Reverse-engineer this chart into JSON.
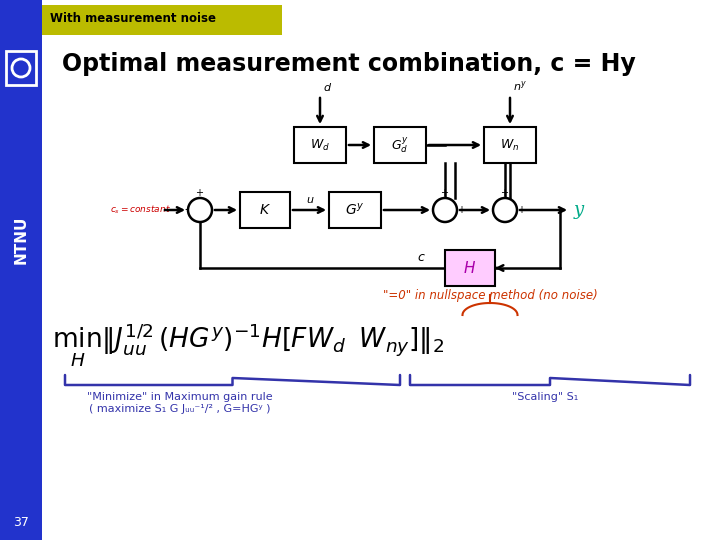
{
  "bg_color": "#ffffff",
  "sidebar_color": "#2233cc",
  "header_bg": "#bbbb00",
  "header_text": "With measurement noise",
  "header_text_color": "#000000",
  "title": "Optimal measurement combination, c = Hy",
  "title_color": "#000000",
  "page_number": "37",
  "page_number_color": "#ffffff",
  "ntnu_color": "#ffffff",
  "annotation_color": "#cc3300",
  "annotation_text": "\"=0\" in nullspace method (no noise)",
  "minimize_label_line1": "\"Minimize\" in Maximum gain rule",
  "minimize_label_line2": "( maximize S₁ G J⁻¹/²ᵤᵤ , G=HGʸ )",
  "scaling_label": "\"Scaling\" S₁"
}
